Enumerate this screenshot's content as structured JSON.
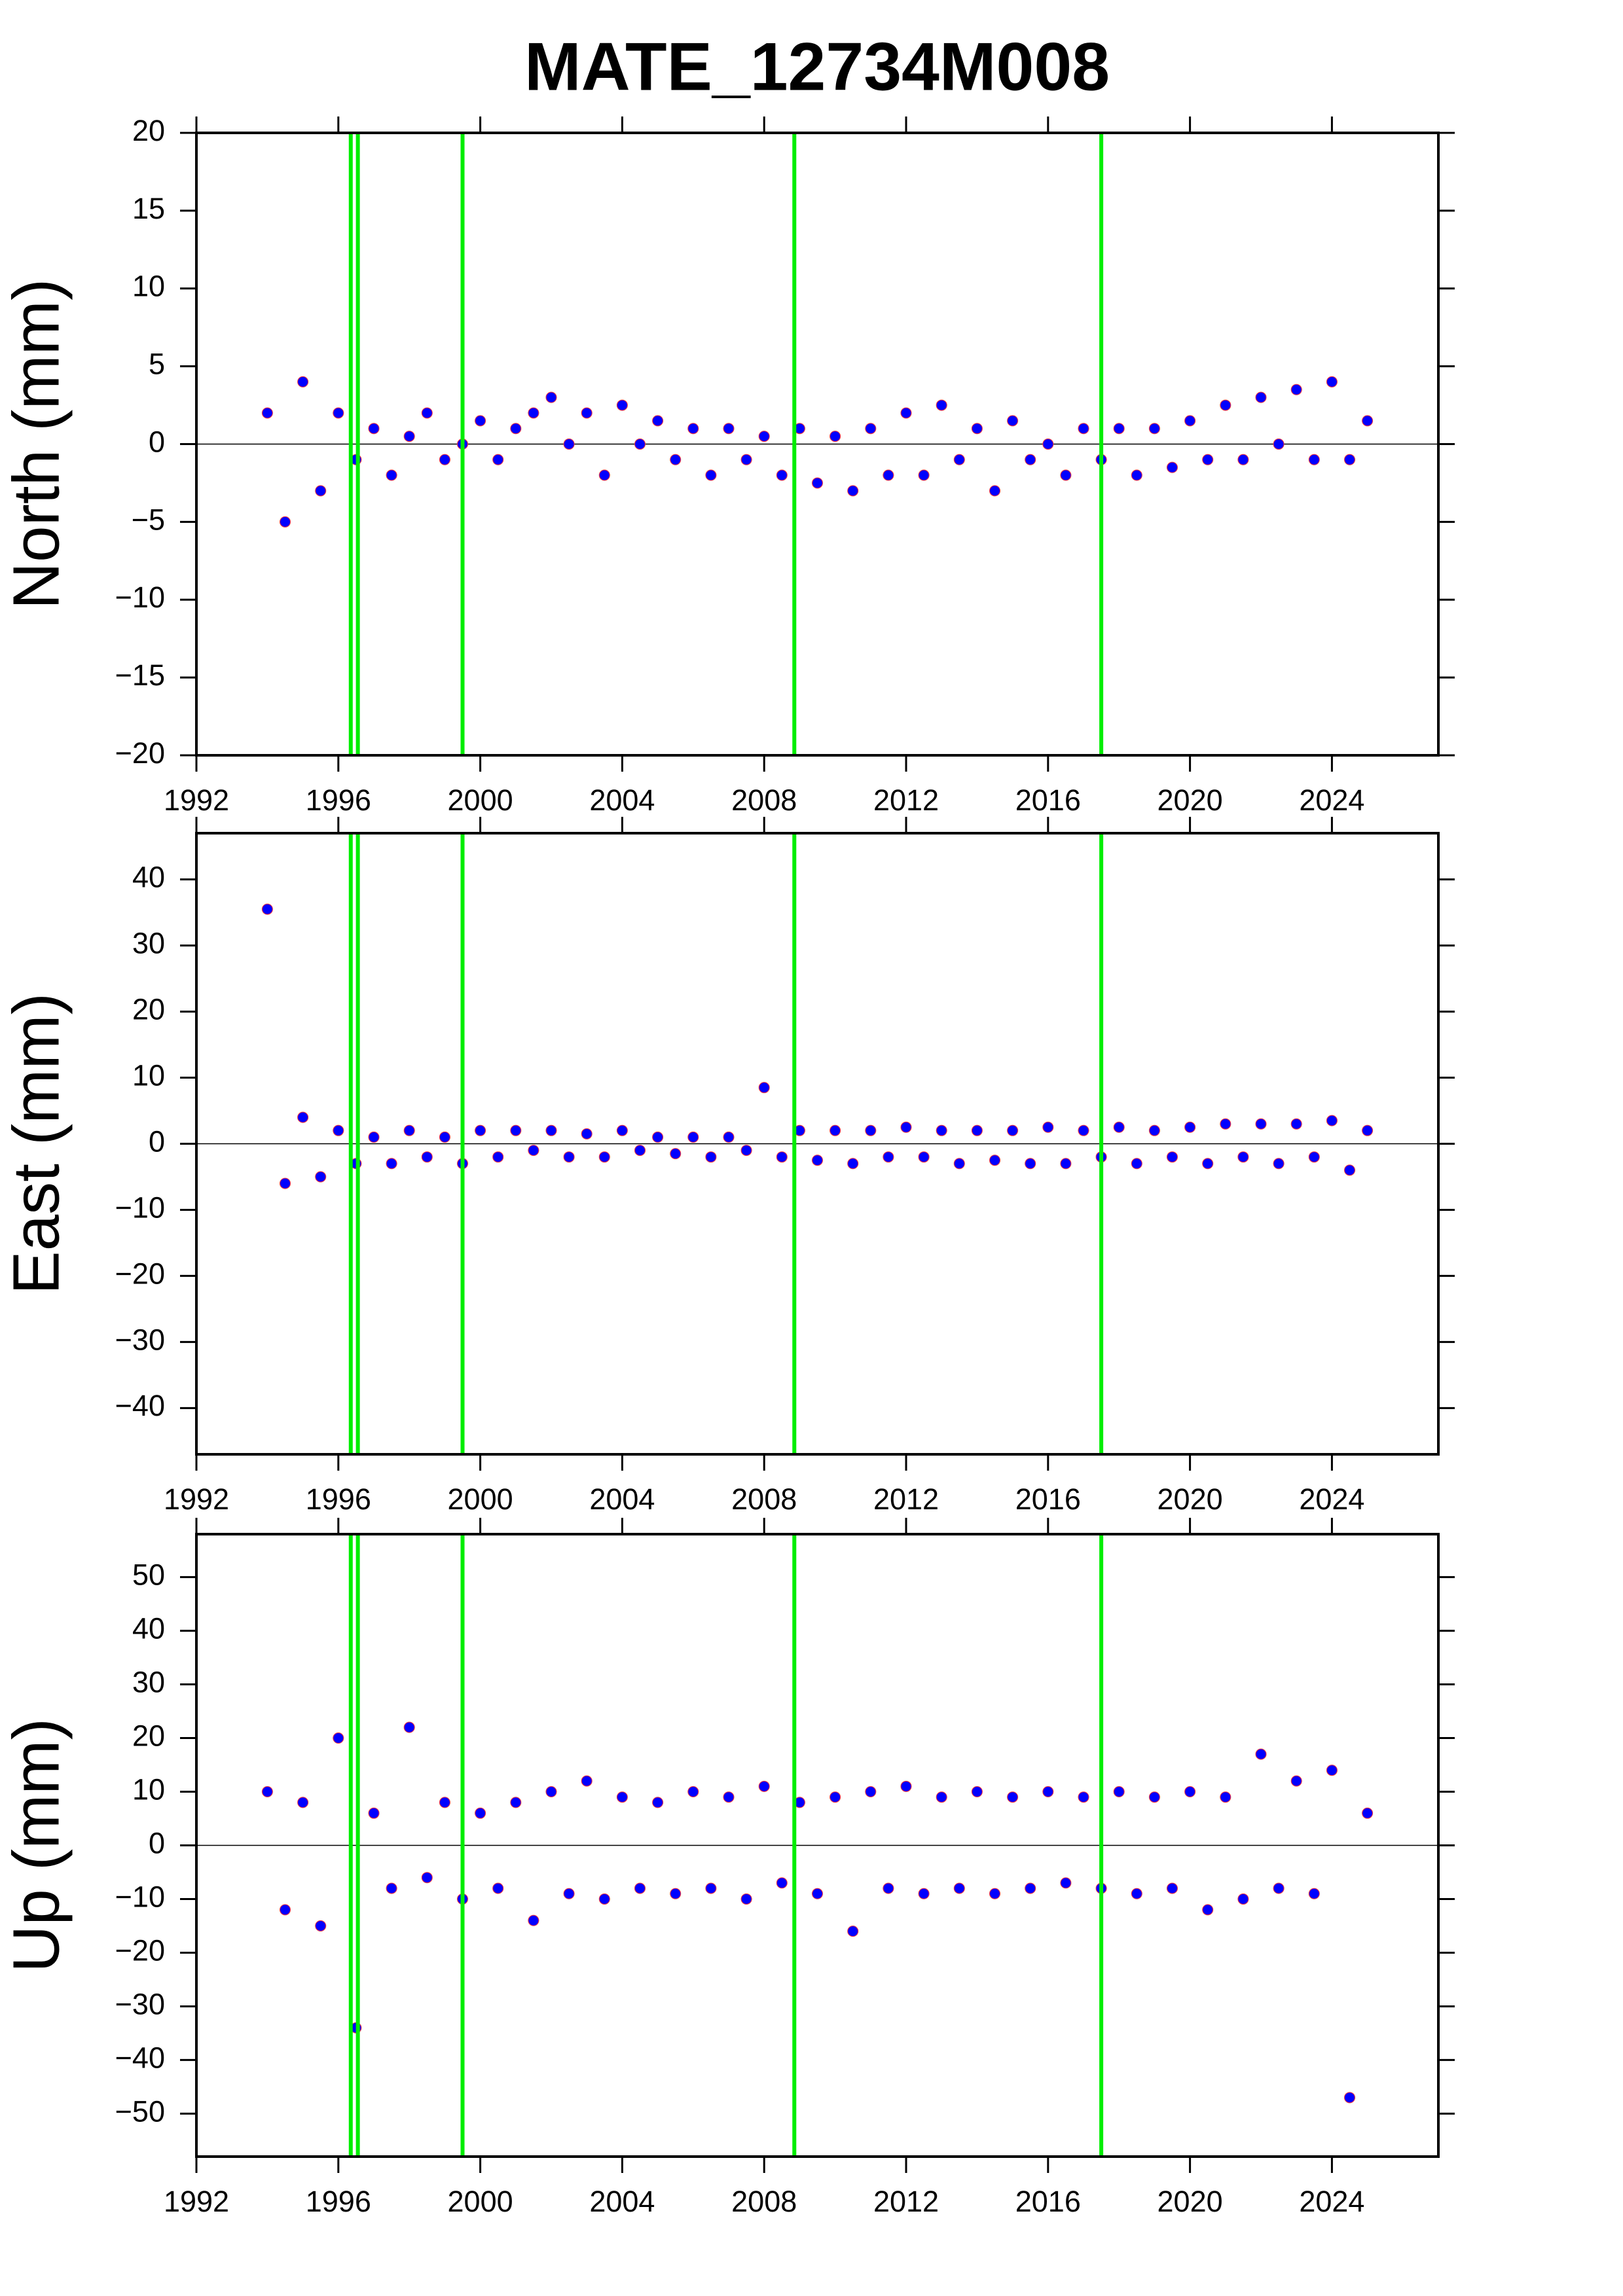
{
  "chart_data": [
    {
      "type": "scatter",
      "title": "MATE_12734M008",
      "ylabel": "North (mm)",
      "xlim": [
        1992,
        2027
      ],
      "xticks": [
        1992,
        1996,
        2000,
        2004,
        2008,
        2012,
        2016,
        2020,
        2024
      ],
      "ylim": [
        -20,
        20
      ],
      "yticks": [
        {
          "value": -20,
          "label": "−20"
        },
        {
          "value": -15,
          "label": "−15"
        },
        {
          "value": -10,
          "label": "−10"
        },
        {
          "value": -5,
          "label": "−5"
        },
        0,
        5,
        10,
        15,
        20
      ],
      "events": [
        1996.35,
        1996.55,
        1999.5,
        2008.85,
        2017.5
      ],
      "event_color": "#00ee00",
      "x": [
        1994.0,
        1994.5,
        1995.0,
        1995.5,
        1996.0,
        1996.5,
        1997.0,
        1997.5,
        1998.0,
        1998.5,
        1999.0,
        1999.5,
        2000.0,
        2000.5,
        2001.0,
        2001.5,
        2002.0,
        2002.5,
        2003.0,
        2003.5,
        2004.0,
        2004.5,
        2005.0,
        2005.5,
        2006.0,
        2006.5,
        2007.0,
        2007.5,
        2008.0,
        2008.5,
        2009.0,
        2009.5,
        2010.0,
        2010.5,
        2011.0,
        2011.5,
        2012.0,
        2012.5,
        2013.0,
        2013.5,
        2014.0,
        2014.5,
        2015.0,
        2015.5,
        2016.0,
        2016.5,
        2017.0,
        2017.5,
        2018.0,
        2018.5,
        2019.0,
        2019.5,
        2020.0,
        2020.5,
        2021.0,
        2021.5,
        2022.0,
        2022.5,
        2023.0,
        2023.5,
        2024.0,
        2024.5,
        2025.0
      ],
      "series": [
        {
          "color": "#0000ff",
          "values": [
            2,
            -5,
            4,
            -3,
            2,
            -1,
            1,
            -2,
            0.5,
            2,
            -1,
            0,
            1.5,
            -1,
            1,
            2,
            3,
            0,
            2,
            -2,
            2.5,
            0,
            1.5,
            -1,
            1,
            -2,
            1,
            -1,
            0.5,
            -2,
            1,
            -2.5,
            0.5,
            -3,
            1,
            -2,
            2,
            -2,
            2.5,
            -1,
            1,
            -3,
            1.5,
            -1,
            0,
            -2,
            1,
            -1,
            1,
            -2,
            1,
            -1.5,
            1.5,
            -1,
            2.5,
            -1,
            3,
            0,
            3.5,
            -1,
            4,
            -1,
            1.5
          ]
        }
      ]
    },
    {
      "type": "scatter",
      "ylabel": "East (mm)",
      "xlim": [
        1992,
        2027
      ],
      "xticks": [
        1992,
        1996,
        2000,
        2004,
        2008,
        2012,
        2016,
        2020,
        2024
      ],
      "ylim": [
        -47,
        47
      ],
      "yticks": [
        {
          "value": -40,
          "label": "−40"
        },
        {
          "value": -30,
          "label": "−30"
        },
        {
          "value": -20,
          "label": "−20"
        },
        {
          "value": -10,
          "label": "−10"
        },
        0,
        10,
        20,
        30,
        40
      ],
      "events": [
        1996.35,
        1996.55,
        1999.5,
        2008.85,
        2017.5
      ],
      "event_color": "#00ee00",
      "x": [
        1994.0,
        1994.5,
        1995.0,
        1995.5,
        1996.0,
        1996.5,
        1997.0,
        1997.5,
        1998.0,
        1998.5,
        1999.0,
        1999.5,
        2000.0,
        2000.5,
        2001.0,
        2001.5,
        2002.0,
        2002.5,
        2003.0,
        2003.5,
        2004.0,
        2004.5,
        2005.0,
        2005.5,
        2006.0,
        2006.5,
        2007.0,
        2007.5,
        2008.0,
        2008.5,
        2009.0,
        2009.5,
        2010.0,
        2010.5,
        2011.0,
        2011.5,
        2012.0,
        2012.5,
        2013.0,
        2013.5,
        2014.0,
        2014.5,
        2015.0,
        2015.5,
        2016.0,
        2016.5,
        2017.0,
        2017.5,
        2018.0,
        2018.5,
        2019.0,
        2019.5,
        2020.0,
        2020.5,
        2021.0,
        2021.5,
        2022.0,
        2022.5,
        2023.0,
        2023.5,
        2024.0,
        2024.5,
        2025.0
      ],
      "series": [
        {
          "color": "#0000ff",
          "values": [
            35.5,
            -6,
            4,
            -5,
            2,
            -3,
            1,
            -3,
            2,
            -2,
            1,
            -3,
            2,
            -2,
            2,
            -1,
            2,
            -2,
            1.5,
            -2,
            2,
            -1,
            1,
            -1.5,
            1,
            -2,
            1,
            -1,
            8.5,
            -2,
            2,
            -2.5,
            2,
            -3,
            2,
            -2,
            2.5,
            -2,
            2,
            -3,
            2,
            -2.5,
            2,
            -3,
            2.5,
            -3,
            2,
            -2,
            2.5,
            -3,
            2,
            -2,
            2.5,
            -3,
            3,
            -2,
            3,
            -3,
            3,
            -2,
            3.5,
            -4,
            2
          ]
        }
      ]
    },
    {
      "type": "scatter",
      "ylabel": "Up (mm)",
      "xlim": [
        1992,
        2027
      ],
      "xticks": [
        1992,
        1996,
        2000,
        2004,
        2008,
        2012,
        2016,
        2020,
        2024
      ],
      "ylim": [
        -58,
        58
      ],
      "yticks": [
        {
          "value": -50,
          "label": "−50"
        },
        {
          "value": -40,
          "label": "−40"
        },
        {
          "value": -30,
          "label": "−30"
        },
        {
          "value": -20,
          "label": "−20"
        },
        {
          "value": -10,
          "label": "−10"
        },
        0,
        10,
        20,
        30,
        40,
        50
      ],
      "events": [
        1996.35,
        1996.55,
        1999.5,
        2008.85,
        2017.5
      ],
      "event_color": "#00ee00",
      "x": [
        1994.0,
        1994.5,
        1995.0,
        1995.5,
        1996.0,
        1996.5,
        1997.0,
        1997.5,
        1998.0,
        1998.5,
        1999.0,
        1999.5,
        2000.0,
        2000.5,
        2001.0,
        2001.5,
        2002.0,
        2002.5,
        2003.0,
        2003.5,
        2004.0,
        2004.5,
        2005.0,
        2005.5,
        2006.0,
        2006.5,
        2007.0,
        2007.5,
        2008.0,
        2008.5,
        2009.0,
        2009.5,
        2010.0,
        2010.5,
        2011.0,
        2011.5,
        2012.0,
        2012.5,
        2013.0,
        2013.5,
        2014.0,
        2014.5,
        2015.0,
        2015.5,
        2016.0,
        2016.5,
        2017.0,
        2017.5,
        2018.0,
        2018.5,
        2019.0,
        2019.5,
        2020.0,
        2020.5,
        2021.0,
        2021.5,
        2022.0,
        2022.5,
        2023.0,
        2023.5,
        2024.0,
        2024.5,
        2025.0
      ],
      "series": [
        {
          "color": "#0000ff",
          "values": [
            10,
            -12,
            8,
            -15,
            20,
            -34,
            6,
            -8,
            22,
            -6,
            8,
            -10,
            6,
            -8,
            8,
            -14,
            10,
            -9,
            12,
            -10,
            9,
            -8,
            8,
            -9,
            10,
            -8,
            9,
            -10,
            11,
            -7,
            8,
            -9,
            9,
            -16,
            10,
            -8,
            11,
            -9,
            9,
            -8,
            10,
            -9,
            9,
            -8,
            10,
            -7,
            9,
            -8,
            10,
            -9,
            9,
            -8,
            10,
            -12,
            9,
            -10,
            17,
            -8,
            12,
            -9,
            14,
            -47,
            6
          ]
        }
      ]
    }
  ]
}
